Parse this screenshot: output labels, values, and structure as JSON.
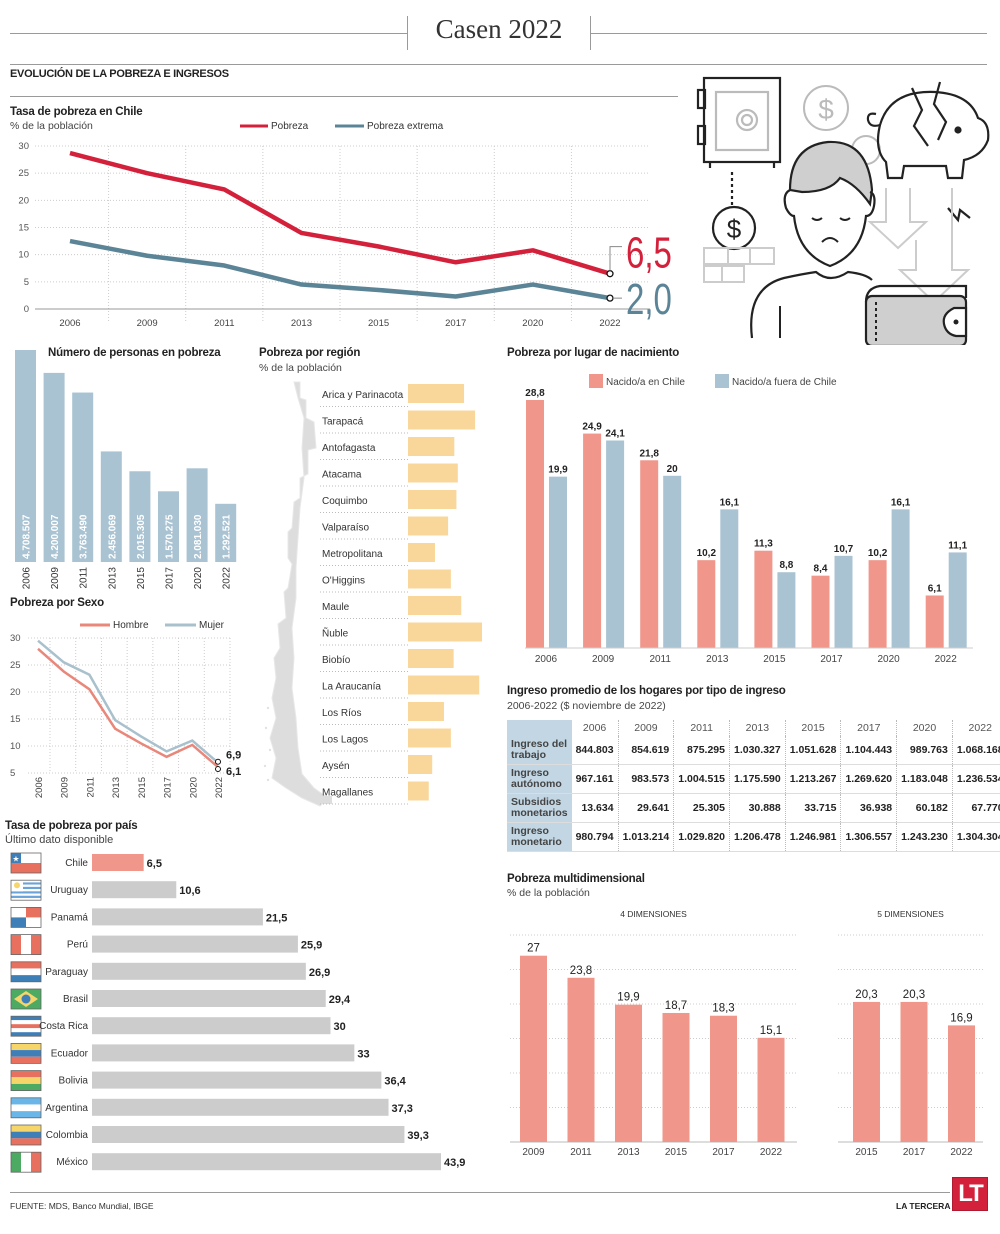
{
  "header": {
    "title": "Casen 2022",
    "section": "EVOLUCIÓN DE LA POBREZA E INGRESOS"
  },
  "footer": {
    "source": "FUENTE: MDS, Banco Mundial, IBGE",
    "brand": "LA TERCERA",
    "logo": "LT"
  },
  "colors": {
    "pobreza": "#d4213b",
    "pobreza_extrema": "#5b8497",
    "hombre": "#e8877a",
    "mujer": "#a9c0cd",
    "bar_blue": "#a9c3d3",
    "bar_salmon": "#f0968a",
    "bar_region": "#f9d79a",
    "bar_grey": "#cccccc",
    "logo_red": "#d4213b"
  },
  "illustration": {
    "icons": [
      "safe-icon",
      "dollar-coin-icon",
      "broken-piggy-bank-icon",
      "sad-person-icon",
      "wallet-icon",
      "down-arrow-icon"
    ]
  },
  "chart_data": [
    {
      "id": "tasa_pobreza",
      "type": "line",
      "title": "Tasa de pobreza en Chile",
      "subtitle": "% de la población",
      "categories": [
        "2006",
        "2009",
        "2011",
        "2013",
        "2015",
        "2017",
        "2020",
        "2022"
      ],
      "series": [
        {
          "name": "Pobreza",
          "values": [
            28.7,
            25.0,
            22.0,
            14.0,
            11.5,
            8.6,
            10.8,
            6.5
          ]
        },
        {
          "name": "Pobreza extrema",
          "values": [
            12.5,
            9.8,
            8.0,
            4.5,
            3.5,
            2.3,
            4.5,
            2.0
          ]
        }
      ],
      "end_labels": [
        "6,5",
        "2,0"
      ],
      "yticks": [
        "0",
        "5",
        "10",
        "15",
        "20",
        "25",
        "30"
      ],
      "ylim": [
        0,
        30
      ],
      "legend": "top",
      "grid": true
    },
    {
      "id": "personas_pobreza",
      "type": "bar",
      "title": "Número de personas en pobreza",
      "categories": [
        "2006",
        "2009",
        "2011",
        "2013",
        "2015",
        "2017",
        "2020",
        "2022"
      ],
      "values": [
        4708507,
        4200007,
        3763490,
        2456069,
        2015305,
        1570275,
        2081030,
        1292521
      ],
      "labels": [
        "4.708.507",
        "4.200.007",
        "3.763.490",
        "2.456.069",
        "2.015.305",
        "1.570.275",
        "2.081.030",
        "1.292.521"
      ]
    },
    {
      "id": "pobreza_sexo",
      "type": "line",
      "title": "Pobreza por Sexo",
      "categories": [
        "2006",
        "2009",
        "2011",
        "2013",
        "2015",
        "2017",
        "2020",
        "2022"
      ],
      "series": [
        {
          "name": "Hombre",
          "values": [
            28.0,
            23.8,
            20.5,
            13.2,
            10.5,
            8.0,
            10.2,
            6.1
          ]
        },
        {
          "name": "Mujer",
          "values": [
            29.5,
            25.5,
            23.2,
            14.8,
            11.8,
            9.0,
            11.0,
            6.9
          ]
        }
      ],
      "end_labels": [
        "6,9",
        "6,1"
      ],
      "yticks": [
        "5",
        "10",
        "15",
        "20",
        "25",
        "30"
      ],
      "ylim": [
        5,
        30
      ],
      "legend": "top",
      "grid": true
    },
    {
      "id": "pobreza_region",
      "type": "bar",
      "title": "Pobreza por región",
      "subtitle": "% de la población",
      "categories": [
        "Arica y Parinacota",
        "Tarapacá",
        "Antofagasta",
        "Atacama",
        "Coquimbo",
        "Valparaíso",
        "Metropolitana",
        "O'Higgins",
        "Maule",
        "Ñuble",
        "Biobío",
        "La Araucanía",
        "Los Ríos",
        "Los Lagos",
        "Aysén",
        "Magallanes"
      ],
      "values": [
        8.1,
        9.7,
        6.7,
        7.2,
        7.0,
        5.8,
        3.9,
        6.2,
        7.7,
        10.7,
        6.6,
        10.3,
        5.2,
        6.2,
        3.5,
        3.0
      ],
      "orientation": "horizontal"
    },
    {
      "id": "lugar_nacimiento",
      "type": "bar",
      "title": "Pobreza por lugar de nacimiento",
      "categories": [
        "2006",
        "2009",
        "2011",
        "2013",
        "2015",
        "2017",
        "2020",
        "2022"
      ],
      "series": [
        {
          "name": "Nacido/a en Chile",
          "values": [
            28.8,
            24.9,
            21.8,
            10.2,
            11.3,
            8.4,
            10.2,
            6.1
          ],
          "labels": [
            "28,8",
            "24,9",
            "21,8",
            "10,2",
            "11,3",
            "8,4",
            "10,2",
            "6,1"
          ]
        },
        {
          "name": "Nacido/a fuera de Chile",
          "values": [
            19.9,
            24.1,
            20,
            16.1,
            8.8,
            10.7,
            16.1,
            11.1
          ],
          "labels": [
            "19,9",
            "24,1",
            "20",
            "16,1",
            "8,8",
            "10,7",
            "16,1",
            "11,1"
          ]
        }
      ],
      "legend": "top",
      "ylim": [
        0,
        30
      ]
    },
    {
      "id": "ingreso_hogares",
      "type": "table",
      "title": "Ingreso promedio de los hogares por tipo de ingreso",
      "subtitle": "2006-2022 ($ noviembre de 2022)",
      "columns": [
        "2006",
        "2009",
        "2011",
        "2013",
        "2015",
        "2017",
        "2020",
        "2022"
      ],
      "rows": [
        {
          "label": "Ingreso del trabajo",
          "values": [
            "844.803",
            "854.619",
            "875.295",
            "1.030.327",
            "1.051.628",
            "1.104.443",
            "989.763",
            "1.068.168"
          ]
        },
        {
          "label": "Ingreso autónomo",
          "values": [
            "967.161",
            "983.573",
            "1.004.515",
            "1.175.590",
            "1.213.267",
            "1.269.620",
            "1.183.048",
            "1.236.534"
          ]
        },
        {
          "label": "Subsidios monetarios",
          "values": [
            "13.634",
            "29.641",
            "25.305",
            "30.888",
            "33.715",
            "36.938",
            "60.182",
            "67.770"
          ]
        },
        {
          "label": "Ingreso monetario",
          "values": [
            "980.794",
            "1.013.214",
            "1.029.820",
            "1.206.478",
            "1.246.981",
            "1.306.557",
            "1.243.230",
            "1.304.304"
          ]
        }
      ]
    },
    {
      "id": "tasa_pais",
      "type": "bar",
      "title": "Tasa de pobreza por país",
      "subtitle": "Último dato disponible",
      "orientation": "horizontal",
      "categories": [
        "Chile",
        "Uruguay",
        "Panamá",
        "Perú",
        "Paraguay",
        "Brasil",
        "Costa Rica",
        "Ecuador",
        "Bolivia",
        "Argentina",
        "Colombia",
        "México"
      ],
      "values": [
        6.5,
        10.6,
        21.5,
        25.9,
        26.9,
        29.4,
        30,
        33,
        36.4,
        37.3,
        39.3,
        43.9
      ],
      "labels": [
        "6,5",
        "10,6",
        "21,5",
        "25,9",
        "26,9",
        "29,4",
        "30",
        "33",
        "36,4",
        "37,3",
        "39,3",
        "43,9"
      ],
      "highlight": "Chile"
    },
    {
      "id": "multidimensional",
      "type": "bar",
      "title": "Pobreza multidimensional",
      "subtitle": "% de la población",
      "panels": [
        {
          "name": "4 DIMENSIONES",
          "categories": [
            "2009",
            "2011",
            "2013",
            "2015",
            "2017",
            "2022"
          ],
          "values": [
            27,
            23.8,
            19.9,
            18.7,
            18.3,
            15.1
          ],
          "labels": [
            "27",
            "23,8",
            "19,9",
            "18,7",
            "18,3",
            "15,1"
          ]
        },
        {
          "name": "5 DIMENSIONES",
          "categories": [
            "2015",
            "2017",
            "2022"
          ],
          "values": [
            20.3,
            20.3,
            16.9
          ],
          "labels": [
            "20,3",
            "20,3",
            "16,9"
          ]
        }
      ],
      "ylim": [
        0,
        30
      ],
      "grid": true
    }
  ]
}
